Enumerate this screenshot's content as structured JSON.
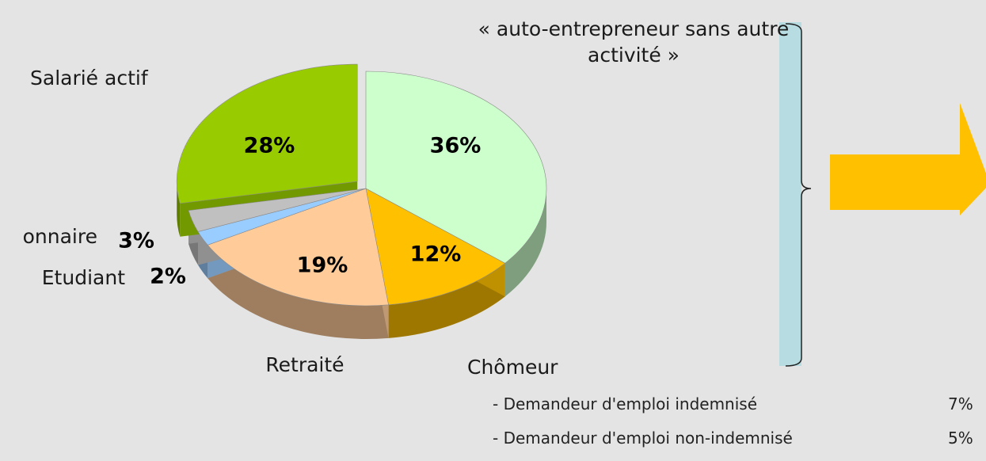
{
  "chart_data": {
    "type": "pie",
    "categories": [
      "« auto-entrepreneur sans autre activité »",
      "Chômeur",
      "Retraité",
      "Etudiant",
      "onnaire",
      "Salarié actif"
    ],
    "values": [
      36,
      12,
      19,
      2,
      3,
      28
    ],
    "value_labels": [
      "36%",
      "12%",
      "19%",
      "2%",
      "3%",
      "28%"
    ],
    "colors": [
      "#ccffcc",
      "#ffc000",
      "#ffcc99",
      "#99ccff",
      "#c0c0c0",
      "#99cc00"
    ]
  },
  "chomeur_detail": [
    {
      "label": "- Demandeur d'emploi indemnisé",
      "value": "7%"
    },
    {
      "label": "- Demandeur d'emploi non-indemnisé",
      "value": "5%"
    }
  ]
}
